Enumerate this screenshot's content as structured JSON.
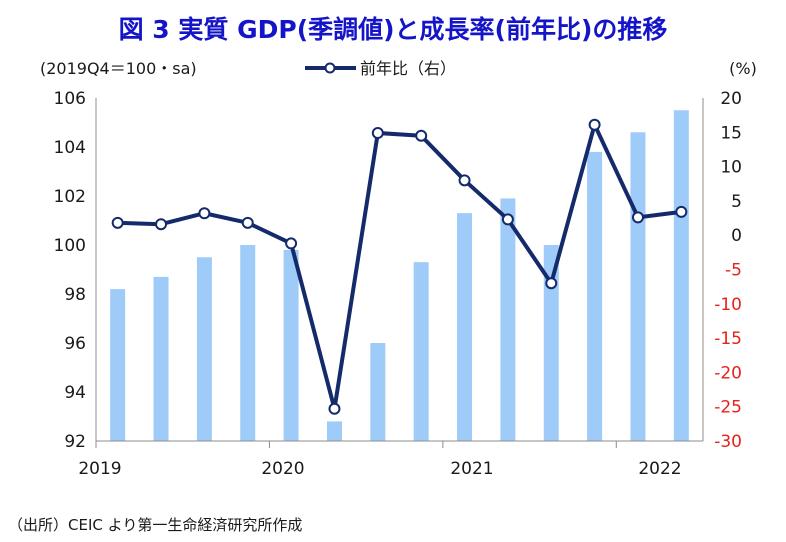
{
  "chart_data": {
    "type": "bar+line",
    "title": "図 3  実質 GDP(季調値)と成長率(前年比)の推移",
    "left_axis_note": "(2019Q4＝100・sa)",
    "right_axis_unit": "(%)",
    "legend": {
      "line_label": "前年比（右）"
    },
    "source": "（出所）CEIC より第一生命経済研究所作成",
    "x_labels": [
      "2019",
      "2020",
      "2021",
      "2022"
    ],
    "categories": [
      "2019Q1",
      "2019Q2",
      "2019Q3",
      "2019Q4",
      "2020Q1",
      "2020Q2",
      "2020Q3",
      "2020Q4",
      "2021Q1",
      "2021Q2",
      "2021Q3",
      "2021Q4",
      "2022Q1",
      "2022Q2"
    ],
    "left_axis": {
      "min": 92,
      "max": 106,
      "ticks": [
        "92",
        "94",
        "96",
        "98",
        "100",
        "102",
        "104",
        "106"
      ]
    },
    "right_axis": {
      "min": -30,
      "max": 20,
      "ticks": [
        "20",
        "15",
        "10",
        "5",
        "0",
        "-5",
        "-10",
        "-15",
        "-20",
        "-25",
        "-30"
      ],
      "negative_color": "#e8201c"
    },
    "series": [
      {
        "name": "実質GDP（季調値）",
        "type": "bar",
        "axis": "left",
        "color": "#9ecbf7",
        "values": [
          98.2,
          98.7,
          99.5,
          100.0,
          99.8,
          92.8,
          96.0,
          99.3,
          101.3,
          101.9,
          100.0,
          103.8,
          104.6,
          105.5
        ]
      },
      {
        "name": "前年比（右）",
        "type": "line",
        "axis": "right",
        "color": "#142a6b",
        "values": [
          1.8,
          1.6,
          3.2,
          1.8,
          -1.2,
          -25.3,
          14.9,
          14.5,
          8.0,
          2.3,
          -7.0,
          16.1,
          2.6,
          3.4
        ]
      }
    ]
  }
}
